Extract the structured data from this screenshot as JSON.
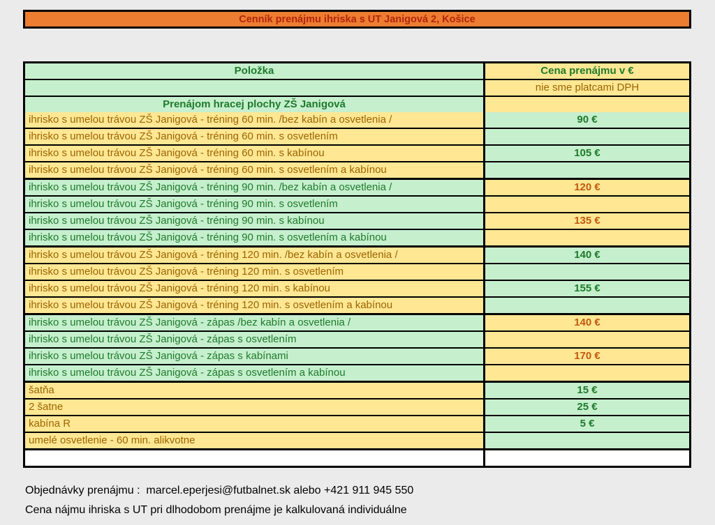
{
  "title_bar": {
    "text": "Cenník prenájmu ihriska s UT Janigová 2, Košice"
  },
  "table": {
    "columns": {
      "item": "Položka",
      "price": "Cena prenájmu v €"
    },
    "vat_note": "nie sme platcami DPH",
    "section_header": "Prenájom hracej plochy ZŠ Janigová",
    "rows": [
      {
        "item": "ihrisko s umelou trávou ZŠ Janigová - tréning 60 min. /bez kabín a osvetlenia /",
        "price": "90 €",
        "left": "yellow",
        "section_start": false
      },
      {
        "item": "ihrisko s umelou trávou ZŠ Janigová - tréning 60 min. s osvetlením",
        "price": "",
        "left": "yellow",
        "section_start": false
      },
      {
        "item": "ihrisko s umelou trávou ZŠ Janigová - tréning 60 min. s kabínou",
        "price": "105 €",
        "left": "yellow",
        "section_start": false
      },
      {
        "item": "ihrisko s umelou trávou ZŠ Janigová - tréning 60 min. s osvetlením a kabínou",
        "price": "",
        "left": "yellow",
        "section_start": false
      },
      {
        "item": "ihrisko s umelou trávou ZŠ Janigová - tréning 90 min. /bez kabín a osvetlenia /",
        "price": "120 €",
        "left": "green",
        "section_start": true
      },
      {
        "item": "ihrisko s umelou trávou ZŠ Janigová - tréning 90 min. s osvetlením",
        "price": "",
        "left": "green",
        "section_start": false
      },
      {
        "item": "ihrisko s umelou trávou ZŠ Janigová - tréning 90 min. s kabínou",
        "price": "135 €",
        "left": "green",
        "section_start": false
      },
      {
        "item": "ihrisko s umelou trávou ZŠ Janigová - tréning 90 min. s osvetlením a kabínou",
        "price": "",
        "left": "green",
        "section_start": false
      },
      {
        "item": "ihrisko s umelou trávou ZŠ Janigová - tréning 120 min. /bez kabín a osvetlenia /",
        "price": "140 €",
        "left": "yellow",
        "section_start": true
      },
      {
        "item": "ihrisko s umelou trávou ZŠ Janigová - tréning 120 min. s osvetlením",
        "price": "",
        "left": "yellow",
        "section_start": false
      },
      {
        "item": "ihrisko s umelou trávou ZŠ Janigová - tréning 120 min. s kabínou",
        "price": "155 €",
        "left": "yellow",
        "section_start": false
      },
      {
        "item": "ihrisko s umelou trávou ZŠ Janigová - tréning 120 min. s osvetlením a kabínou",
        "price": "",
        "left": "yellow",
        "section_start": false
      },
      {
        "item": "ihrisko s umelou trávou ZŠ Janigová - zápas /bez kabín a osvetlenia /",
        "price": "140 €",
        "left": "green",
        "section_start": true
      },
      {
        "item": "ihrisko s umelou trávou ZŠ Janigová - zápas s osvetlením",
        "price": "",
        "left": "green",
        "section_start": false
      },
      {
        "item": "ihrisko s umelou trávou ZŠ Janigová - zápas s kabínami",
        "price": "170 €",
        "left": "green",
        "section_start": false
      },
      {
        "item": "ihrisko s umelou trávou ZŠ Janigová - zápas s osvetlením a kabínou",
        "price": "",
        "left": "green",
        "section_start": false
      },
      {
        "item": "šatňa",
        "price": "15 €",
        "left": "yellow",
        "section_start": true
      },
      {
        "item": "2 šatne",
        "price": "25 €",
        "left": "yellow",
        "section_start": false
      },
      {
        "item": "kabína R",
        "price": "5 €",
        "left": "yellow",
        "section_start": false
      },
      {
        "item": "umelé osvetlenie - 60 min. alikvotne",
        "price": "",
        "left": "yellow",
        "section_start": false
      }
    ]
  },
  "footer": {
    "orders_line": "Objednávky prenájmu :  marcel.eperjesi@futbalnet.sk alebo +421 911 945 550",
    "longterm_line": "Cena nájmu ihriska s UT pri dlhodobom prenájme je kalkulovaná individuálne"
  },
  "colors": {
    "page_bg": "#EBEBEB",
    "header_bar_bg": "#ED7D31",
    "header_bar_text": "#B3260E",
    "green_bg": "#C6EFCE",
    "green_text": "#1E7B2B",
    "yellow_bg": "#FFE794",
    "yellow_text": "#9C6500",
    "yellow_price_text": "#C05A0F",
    "border": "#000000"
  }
}
